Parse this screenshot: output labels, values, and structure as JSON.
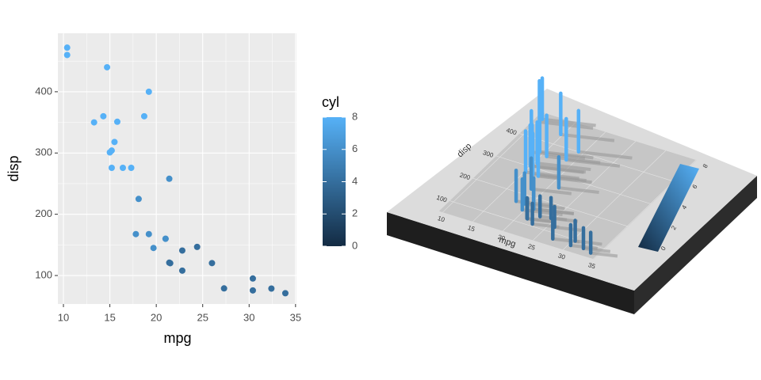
{
  "chart_data": [
    {
      "type": "scatter",
      "xlabel": "mpg",
      "ylabel": "disp",
      "x": [
        21,
        21,
        22.8,
        21.4,
        18.7,
        18.1,
        14.3,
        24.4,
        22.8,
        19.2,
        17.8,
        16.4,
        17.3,
        15.2,
        10.4,
        10.4,
        14.7,
        32.4,
        30.4,
        33.9,
        21.5,
        15.5,
        15.2,
        13.3,
        19.2,
        27.3,
        26,
        30.4,
        15.8,
        19.7,
        15,
        21.4
      ],
      "y": [
        160,
        160,
        108,
        258,
        360,
        225,
        360,
        146.7,
        140.8,
        167.6,
        167.6,
        275.8,
        275.8,
        275.8,
        472,
        460,
        440,
        78.7,
        75.7,
        71.1,
        120.1,
        318,
        304,
        350,
        400,
        79,
        120.3,
        95.1,
        351,
        145,
        301,
        121
      ],
      "color_values": [
        6,
        6,
        4,
        6,
        8,
        6,
        8,
        4,
        4,
        6,
        6,
        8,
        8,
        8,
        8,
        8,
        8,
        4,
        4,
        4,
        4,
        8,
        8,
        8,
        8,
        4,
        4,
        4,
        8,
        6,
        8,
        4
      ],
      "color_label": "cyl",
      "colormap": [
        "#132B43",
        "#56B1F7"
      ],
      "clim": [
        0,
        8
      ],
      "cticks": [
        0,
        2,
        4,
        6,
        8
      ],
      "xlim": [
        9.4,
        35.1
      ],
      "ylim": [
        53.5,
        495.5
      ],
      "xticks": [
        10,
        15,
        20,
        25,
        30,
        35
      ],
      "yticks": [
        100,
        200,
        300,
        400
      ],
      "grid": true
    },
    {
      "type": "3d",
      "xlabel": "mpg",
      "ylabel": "disp",
      "xlim": [
        9.4,
        35.1
      ],
      "ylim": [
        53.5,
        495.5
      ],
      "clim": [
        0,
        8
      ],
      "xticks": [
        10,
        15,
        20,
        25,
        30,
        35
      ],
      "yticks": [
        100,
        200,
        300,
        400
      ],
      "cticks": [
        0,
        2,
        4,
        6,
        8
      ]
    }
  ]
}
